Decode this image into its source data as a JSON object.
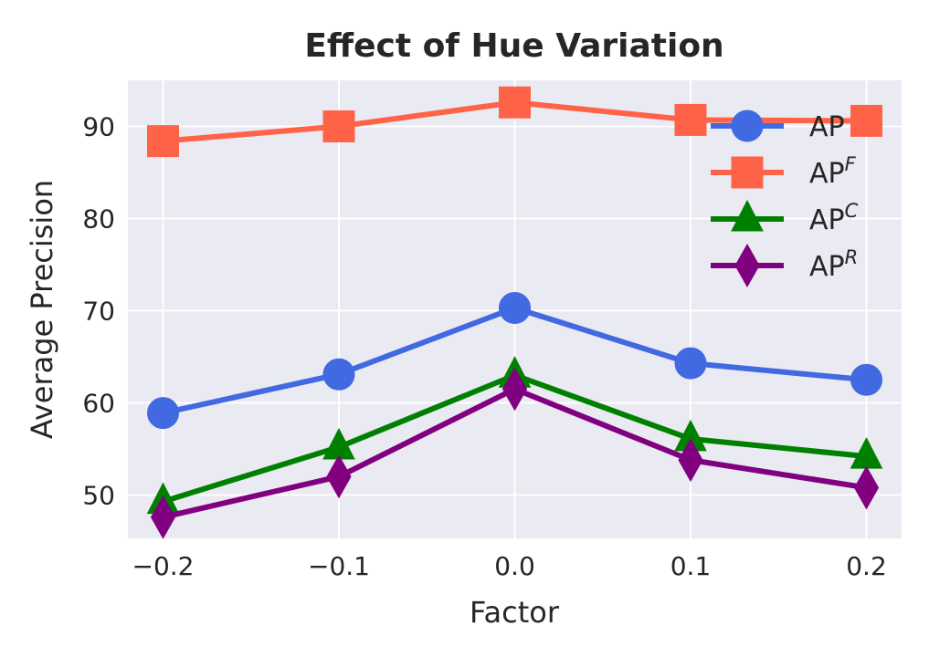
{
  "chart_data": {
    "type": "line",
    "title": "Effect of Hue Variation",
    "xlabel": "Factor",
    "ylabel": "Average Precision",
    "x": [
      -0.2,
      -0.1,
      0.0,
      0.1,
      0.2
    ],
    "x_tick_labels": [
      "−0.2",
      "−0.1",
      "0.0",
      "0.1",
      "0.2"
    ],
    "xlim": [
      -0.22,
      0.22
    ],
    "ylim": [
      45.3,
      95.0
    ],
    "y_ticks": [
      50,
      60,
      70,
      80,
      90
    ],
    "y_tick_labels": [
      "50",
      "60",
      "70",
      "80",
      "90"
    ],
    "grid": true,
    "legend_position": "top-right",
    "series": [
      {
        "name": "AP",
        "name_sup": "",
        "marker": "circle",
        "color": "#4169E1",
        "values": [
          58.9,
          63.1,
          70.3,
          64.3,
          62.5
        ]
      },
      {
        "name": "AP",
        "name_sup": "F",
        "marker": "square",
        "color": "#FF6347",
        "values": [
          88.4,
          90.0,
          92.6,
          90.7,
          90.6
        ]
      },
      {
        "name": "AP",
        "name_sup": "C",
        "marker": "triangle",
        "color": "#008000",
        "values": [
          49.3,
          55.2,
          63.0,
          56.1,
          54.2
        ]
      },
      {
        "name": "AP",
        "name_sup": "R",
        "marker": "diamond",
        "color": "#800080",
        "values": [
          47.6,
          52.0,
          61.5,
          53.8,
          50.8
        ]
      }
    ]
  }
}
